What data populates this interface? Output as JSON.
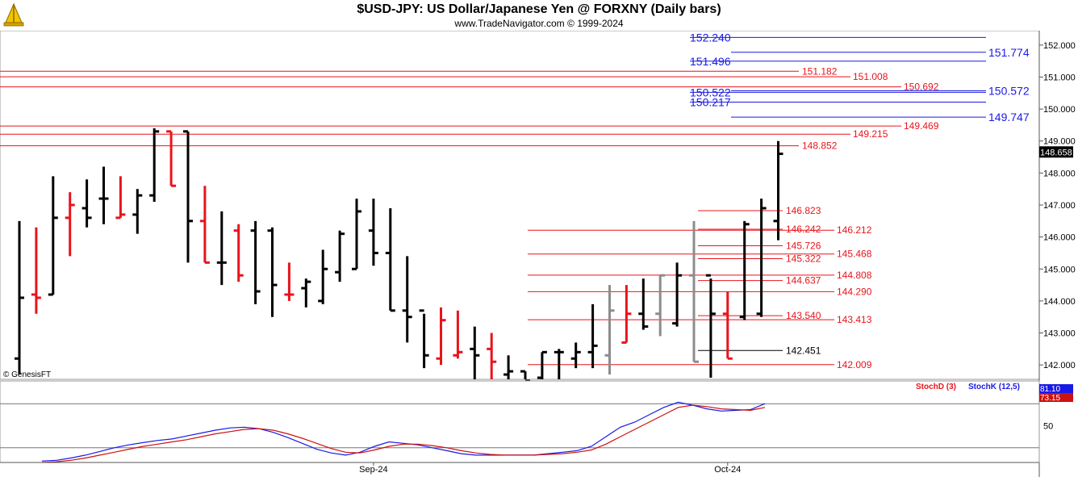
{
  "header": {
    "title": "$USD-JPY:  US Dollar/Japanese Yen @ FORXNY  (Daily bars)",
    "subtitle": "www.TradeNavigator.com © 1999-2024"
  },
  "colors": {
    "up_bar": "#000000",
    "down_bar": "#e8141b",
    "grey_bar": "#8c8c8c",
    "blue_level": "#1a1ae6",
    "red_level": "#e8141b",
    "stochk_line": "#1a1ae6",
    "stochd_line": "#cc1111"
  },
  "chart_data": [
    {
      "type": "ohlc",
      "watermark": "© GenesisFT",
      "y_axis": {
        "ylim": [
          141.55,
          152.45
        ],
        "ticks": [
          "142.000",
          "143.000",
          "144.000",
          "145.000",
          "146.000",
          "147.000",
          "148.000",
          "149.000",
          "150.000",
          "151.000",
          "152.000"
        ]
      },
      "x_axis": {
        "tick_labels": [
          {
            "label": "Sep-24",
            "bar_index": 21
          },
          {
            "label": "Oct-24",
            "bar_index": 42
          }
        ]
      },
      "last_price": "148.658",
      "bars": [
        {
          "o": 142.2,
          "h": 146.5,
          "l": 141.7,
          "c": 144.1,
          "color": "up"
        },
        {
          "o": 144.2,
          "h": 146.3,
          "l": 143.6,
          "c": 144.1,
          "color": "down"
        },
        {
          "o": 144.2,
          "h": 147.9,
          "l": 144.2,
          "c": 146.6,
          "color": "up"
        },
        {
          "o": 146.6,
          "h": 147.4,
          "l": 145.4,
          "c": 147.0,
          "color": "down"
        },
        {
          "o": 146.9,
          "h": 147.8,
          "l": 146.3,
          "c": 146.6,
          "color": "up"
        },
        {
          "o": 147.2,
          "h": 148.2,
          "l": 146.4,
          "c": 147.2,
          "color": "up"
        },
        {
          "o": 146.6,
          "h": 147.9,
          "l": 146.6,
          "c": 146.7,
          "color": "down"
        },
        {
          "o": 146.7,
          "h": 147.5,
          "l": 146.1,
          "c": 147.3,
          "color": "up"
        },
        {
          "o": 147.3,
          "h": 149.4,
          "l": 147.1,
          "c": 149.3,
          "color": "up"
        },
        {
          "o": 149.3,
          "h": 149.3,
          "l": 147.6,
          "c": 147.6,
          "color": "down"
        },
        {
          "o": 149.3,
          "h": 149.3,
          "l": 145.2,
          "c": 146.5,
          "color": "up"
        },
        {
          "o": 146.5,
          "h": 147.6,
          "l": 145.2,
          "c": 145.2,
          "color": "down"
        },
        {
          "o": 145.2,
          "h": 146.8,
          "l": 144.5,
          "c": 145.2,
          "color": "up"
        },
        {
          "o": 146.2,
          "h": 146.4,
          "l": 144.6,
          "c": 144.8,
          "color": "down"
        },
        {
          "o": 146.2,
          "h": 146.5,
          "l": 143.9,
          "c": 144.3,
          "color": "up"
        },
        {
          "o": 146.2,
          "h": 146.3,
          "l": 143.5,
          "c": 144.5,
          "color": "up"
        },
        {
          "o": 144.2,
          "h": 145.2,
          "l": 144.0,
          "c": 144.2,
          "color": "down"
        },
        {
          "o": 144.4,
          "h": 144.7,
          "l": 143.8,
          "c": 144.6,
          "color": "up"
        },
        {
          "o": 144.0,
          "h": 145.6,
          "l": 143.9,
          "c": 145.0,
          "color": "up"
        },
        {
          "o": 144.9,
          "h": 146.2,
          "l": 144.6,
          "c": 146.1,
          "color": "up"
        },
        {
          "o": 145.0,
          "h": 147.2,
          "l": 145.0,
          "c": 146.8,
          "color": "up"
        },
        {
          "o": 146.2,
          "h": 147.2,
          "l": 145.1,
          "c": 145.5,
          "color": "up"
        },
        {
          "o": 145.5,
          "h": 146.9,
          "l": 143.7,
          "c": 143.7,
          "color": "up"
        },
        {
          "o": 143.7,
          "h": 145.4,
          "l": 142.7,
          "c": 143.5,
          "color": "up"
        },
        {
          "o": 143.7,
          "h": 143.6,
          "l": 141.9,
          "c": 142.3,
          "color": "up"
        },
        {
          "o": 142.2,
          "h": 143.8,
          "l": 142.0,
          "c": 143.4,
          "color": "down"
        },
        {
          "o": 142.3,
          "h": 143.7,
          "l": 142.2,
          "c": 142.4,
          "color": "down"
        },
        {
          "o": 142.5,
          "h": 143.2,
          "l": 141.5,
          "c": 142.3,
          "color": "up"
        },
        {
          "o": 142.5,
          "h": 143.0,
          "l": 141.5,
          "c": 142.1,
          "color": "down"
        },
        {
          "o": 141.7,
          "h": 142.3,
          "l": 141.3,
          "c": 141.8,
          "color": "up"
        },
        {
          "o": 141.8,
          "h": 141.8,
          "l": 141.3,
          "c": 141.5,
          "color": "up"
        },
        {
          "o": 141.6,
          "h": 142.4,
          "l": 141.5,
          "c": 142.4,
          "color": "up"
        },
        {
          "o": 142.4,
          "h": 142.5,
          "l": 141.5,
          "c": 142.4,
          "color": "up"
        },
        {
          "o": 142.2,
          "h": 142.7,
          "l": 141.9,
          "c": 142.4,
          "color": "up"
        },
        {
          "o": 142.4,
          "h": 143.9,
          "l": 141.9,
          "c": 142.6,
          "color": "up"
        },
        {
          "o": 142.3,
          "h": 144.5,
          "l": 141.7,
          "c": 143.7,
          "color": "grey"
        },
        {
          "o": 142.7,
          "h": 144.5,
          "l": 142.7,
          "c": 143.6,
          "color": "down"
        },
        {
          "o": 143.6,
          "h": 144.7,
          "l": 143.1,
          "c": 143.2,
          "color": "up"
        },
        {
          "o": 143.6,
          "h": 144.8,
          "l": 142.9,
          "c": 144.8,
          "color": "grey"
        },
        {
          "o": 143.3,
          "h": 145.2,
          "l": 143.2,
          "c": 144.8,
          "color": "up"
        },
        {
          "o": 144.8,
          "h": 146.5,
          "l": 142.1,
          "c": 142.1,
          "color": "grey"
        },
        {
          "o": 144.8,
          "h": 144.7,
          "l": 141.6,
          "c": 143.6,
          "color": "up"
        },
        {
          "o": 143.6,
          "h": 144.3,
          "l": 142.2,
          "c": 142.2,
          "color": "down"
        },
        {
          "o": 143.5,
          "h": 146.5,
          "l": 143.4,
          "c": 146.4,
          "color": "up"
        },
        {
          "o": 143.6,
          "h": 147.2,
          "l": 143.5,
          "c": 146.9,
          "color": "up"
        },
        {
          "o": 146.5,
          "h": 149.0,
          "l": 145.9,
          "c": 148.6,
          "color": "up"
        }
      ],
      "levels": [
        {
          "value": 152.24,
          "label": "152.240",
          "color": "blue",
          "side": "left"
        },
        {
          "value": 151.774,
          "label": "151.774",
          "color": "blue",
          "side": "right"
        },
        {
          "value": 151.496,
          "label": "151.496",
          "color": "blue",
          "side": "left"
        },
        {
          "value": 151.182,
          "label": "151.182",
          "color": "red",
          "side": "mid"
        },
        {
          "value": 151.008,
          "label": "151.008",
          "color": "red",
          "side": "mid2"
        },
        {
          "value": 150.692,
          "label": "150.692",
          "color": "red",
          "side": "mid3"
        },
        {
          "value": 150.572,
          "label": "150.572",
          "color": "blue",
          "side": "right"
        },
        {
          "value": 150.522,
          "label": "150.522",
          "color": "blue",
          "side": "left"
        },
        {
          "value": 150.217,
          "label": "150.217",
          "color": "blue",
          "side": "left"
        },
        {
          "value": 149.747,
          "label": "149.747",
          "color": "blue",
          "side": "right"
        },
        {
          "value": 149.469,
          "label": "149.469",
          "color": "red",
          "side": "mid3"
        },
        {
          "value": 149.215,
          "label": "149.215",
          "color": "red",
          "side": "mid2"
        },
        {
          "value": 148.852,
          "label": "148.852",
          "color": "red",
          "side": "mid"
        },
        {
          "value": 146.823,
          "label": "146.823",
          "color": "red",
          "side": "short"
        },
        {
          "value": 146.242,
          "label": "146.242",
          "color": "red",
          "side": "short"
        },
        {
          "value": 146.212,
          "label": "146.212",
          "color": "red",
          "side": "long"
        },
        {
          "value": 145.726,
          "label": "145.726",
          "color": "red",
          "side": "short"
        },
        {
          "value": 145.468,
          "label": "145.468",
          "color": "red",
          "side": "long"
        },
        {
          "value": 145.322,
          "label": "145.322",
          "color": "red",
          "side": "short"
        },
        {
          "value": 144.808,
          "label": "144.808",
          "color": "red",
          "side": "long"
        },
        {
          "value": 144.637,
          "label": "144.637",
          "color": "red",
          "side": "short"
        },
        {
          "value": 144.29,
          "label": "144.290",
          "color": "red",
          "side": "long"
        },
        {
          "value": 143.54,
          "label": "143.540",
          "color": "red",
          "side": "short"
        },
        {
          "value": 143.413,
          "label": "143.413",
          "color": "red",
          "side": "long"
        },
        {
          "value": 142.451,
          "label": "142.451",
          "color": "black",
          "side": "short"
        },
        {
          "value": 142.009,
          "label": "142.009",
          "color": "red",
          "side": "long"
        }
      ]
    },
    {
      "type": "line",
      "legend": [
        {
          "name": "StochD (3)",
          "color": "red"
        },
        {
          "name": "StochK (12,5)",
          "color": "blue"
        }
      ],
      "ylim": [
        0,
        100
      ],
      "y_tick": "50",
      "stochk_value": "81.10",
      "stochd_value": "73.15",
      "series": [
        {
          "name": "StochK (12,5)",
          "values": [
            2,
            3,
            6,
            10,
            15,
            20,
            24,
            27,
            30,
            32,
            36,
            40,
            44,
            47,
            48,
            46,
            41,
            34,
            26,
            18,
            13,
            10,
            14,
            22,
            28,
            26,
            24,
            20,
            16,
            12,
            10,
            10,
            10,
            10,
            10,
            12,
            14,
            16,
            22,
            35,
            48,
            55,
            65,
            75,
            82,
            78,
            73,
            70,
            71,
            72,
            80
          ]
        },
        {
          "name": "StochD (3)",
          "values": [
            0,
            1,
            3,
            6,
            10,
            14,
            18,
            22,
            25,
            28,
            31,
            35,
            39,
            42,
            45,
            46,
            44,
            39,
            33,
            26,
            19,
            14,
            13,
            17,
            22,
            25,
            25,
            23,
            20,
            16,
            13,
            11,
            10,
            10,
            10,
            11,
            12,
            14,
            17,
            25,
            35,
            45,
            55,
            65,
            75,
            78,
            76,
            73,
            72,
            71,
            75
          ]
        }
      ]
    }
  ]
}
